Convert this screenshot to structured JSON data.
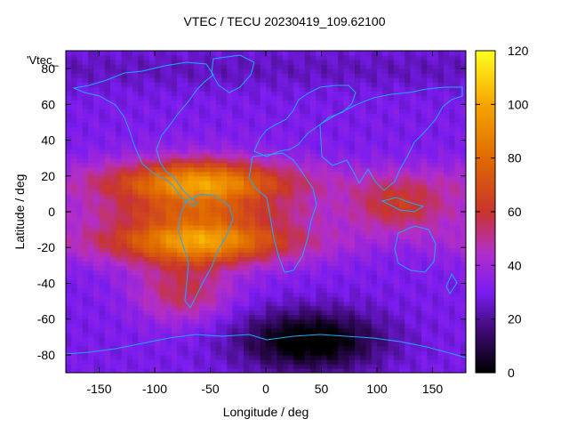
{
  "title": "VTEC / TECU 20230419_109.62100",
  "xlabel": "Longitude / deg",
  "ylabel": "Latitude / deg",
  "series_tag": "'Vtec_",
  "chart_data": {
    "type": "heatmap",
    "x_range": [
      -180,
      180
    ],
    "y_range": [
      -90,
      90
    ],
    "x_ticks": [
      -150,
      -100,
      -50,
      0,
      50,
      100,
      150
    ],
    "y_ticks": [
      -80,
      -60,
      -40,
      -20,
      0,
      20,
      40,
      60,
      80
    ],
    "colorbar": {
      "min": 0,
      "max": 120,
      "ticks": [
        0,
        20,
        40,
        60,
        80,
        100,
        120
      ]
    },
    "colormap_stops": [
      {
        "v": 0,
        "color": "#000000"
      },
      {
        "v": 15,
        "color": "#3a0a6e"
      },
      {
        "v": 30,
        "color": "#7a1cf0"
      },
      {
        "v": 45,
        "color": "#b32ec8"
      },
      {
        "v": 60,
        "color": "#c8352c"
      },
      {
        "v": 80,
        "color": "#e06a00"
      },
      {
        "v": 100,
        "color": "#f5a500"
      },
      {
        "v": 120,
        "color": "#ffff20"
      }
    ],
    "features": {
      "equatorial_anomaly": {
        "center_lon": -60,
        "values": {
          "peak": 95,
          "crest": 80
        }
      },
      "background": 30,
      "polar_minimum": {
        "center_lon": 40,
        "center_lat": -72,
        "value": 5
      }
    }
  }
}
